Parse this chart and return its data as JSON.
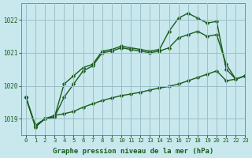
{
  "xlabel": "Graphe pression niveau de la mer (hPa)",
  "bg_color": "#c8e8ee",
  "grid_color": "#9bbfc8",
  "line_color": "#1a5c1a",
  "marker": "D",
  "markersize": 2.5,
  "linewidth": 1.0,
  "ylim": [
    1018.5,
    1022.5
  ],
  "xlim": [
    -0.5,
    23
  ],
  "yticks": [
    1019,
    1020,
    1021,
    1022
  ],
  "xticks": [
    0,
    1,
    2,
    3,
    4,
    5,
    6,
    7,
    8,
    9,
    10,
    11,
    12,
    13,
    14,
    15,
    16,
    17,
    18,
    19,
    20,
    21,
    22,
    23
  ],
  "series": [
    [
      1019.65,
      1018.75,
      1019.0,
      1019.05,
      1020.05,
      1020.3,
      1020.55,
      1020.65,
      1021.05,
      1021.1,
      1021.2,
      1021.15,
      1021.1,
      1021.05,
      1021.1,
      1021.65,
      1022.05,
      1022.2,
      1022.05,
      1021.9,
      1021.95,
      1020.5,
      1020.2,
      1020.3
    ],
    [
      1019.65,
      1018.75,
      1019.0,
      1019.05,
      1019.65,
      1020.05,
      1020.45,
      1020.6,
      1021.0,
      1021.05,
      1021.15,
      1021.1,
      1021.05,
      1021.0,
      1021.05,
      1021.15,
      1021.45,
      1021.55,
      1021.65,
      1021.5,
      1021.55,
      1020.65,
      1020.2,
      1020.3
    ],
    [
      1019.65,
      1018.8,
      1019.0,
      1019.1,
      1019.15,
      1019.22,
      1019.35,
      1019.45,
      1019.55,
      1019.63,
      1019.7,
      1019.75,
      1019.8,
      1019.87,
      1019.93,
      1019.98,
      1020.05,
      1020.15,
      1020.25,
      1020.35,
      1020.45,
      1020.15,
      1020.2,
      1020.3
    ]
  ]
}
